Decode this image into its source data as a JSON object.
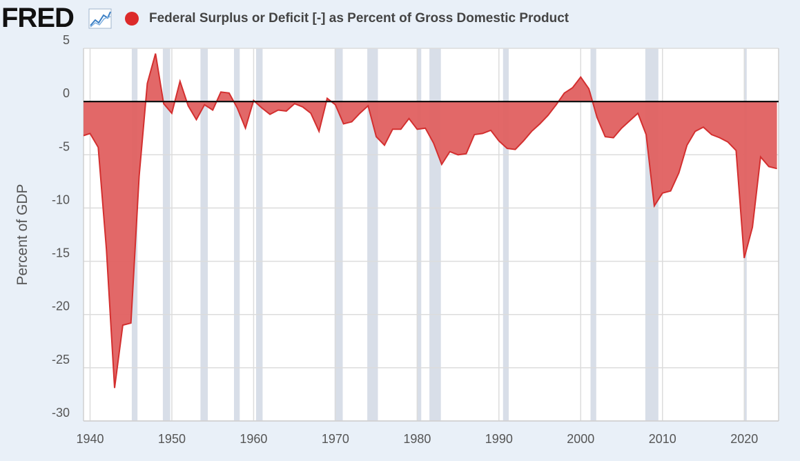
{
  "header": {
    "logo_text": "FRED",
    "logo_icon": "line-chart-icon",
    "legend_label": "Federal Surplus or Deficit [-] as Percent of Gross Domestic Product",
    "legend_color": "#dc2a2a"
  },
  "chart_data": {
    "type": "area",
    "ylabel": "Percent of GDP",
    "xlabel": "",
    "xlim": [
      1939.2,
      2024.2
    ],
    "ylim": [
      -30,
      5
    ],
    "x_ticks": [
      1940,
      1950,
      1960,
      1970,
      1980,
      1990,
      2000,
      2010,
      2020
    ],
    "y_ticks": [
      5,
      0,
      -5,
      -10,
      -15,
      -20,
      -25,
      -30
    ],
    "grid": true,
    "fill_color": "#e06060",
    "line_color": "#d32f2f",
    "recessions": [
      [
        1945.1,
        1945.8
      ],
      [
        1948.9,
        1949.8
      ],
      [
        1953.5,
        1954.4
      ],
      [
        1957.6,
        1958.3
      ],
      [
        1960.3,
        1961.1
      ],
      [
        1969.9,
        1970.9
      ],
      [
        1973.9,
        1975.2
      ],
      [
        1980.0,
        1980.5
      ],
      [
        1981.5,
        1982.9
      ],
      [
        1990.5,
        1991.2
      ],
      [
        2001.2,
        2001.9
      ],
      [
        2007.9,
        2009.5
      ],
      [
        2020.0,
        2020.3
      ]
    ],
    "series": [
      {
        "name": "Federal Surplus or Deficit [-] as Percent of Gross Domestic Product",
        "x": [
          1939,
          1940,
          1941,
          1942,
          1943,
          1944,
          1945,
          1946,
          1947,
          1948,
          1949,
          1950,
          1951,
          1952,
          1953,
          1954,
          1955,
          1956,
          1957,
          1958,
          1959,
          1960,
          1961,
          1962,
          1963,
          1964,
          1965,
          1966,
          1967,
          1968,
          1969,
          1970,
          1971,
          1972,
          1973,
          1974,
          1975,
          1976,
          1977,
          1978,
          1979,
          1980,
          1981,
          1982,
          1983,
          1984,
          1985,
          1986,
          1987,
          1988,
          1989,
          1990,
          1991,
          1992,
          1993,
          1994,
          1995,
          1996,
          1997,
          1998,
          1999,
          2000,
          2001,
          2002,
          2003,
          2004,
          2005,
          2006,
          2007,
          2008,
          2009,
          2010,
          2011,
          2012,
          2013,
          2014,
          2015,
          2016,
          2017,
          2018,
          2019,
          2020,
          2021,
          2022,
          2023,
          2024
        ],
        "values": [
          -3.2,
          -3.0,
          -4.3,
          -13.9,
          -26.9,
          -21.0,
          -20.8,
          -7.0,
          1.7,
          4.5,
          -0.2,
          -1.1,
          1.9,
          -0.4,
          -1.7,
          -0.3,
          -0.8,
          0.9,
          0.8,
          -0.6,
          -2.5,
          0.1,
          -0.6,
          -1.2,
          -0.8,
          -0.9,
          -0.2,
          -0.5,
          -1.1,
          -2.8,
          0.3,
          -0.3,
          -2.1,
          -1.9,
          -1.1,
          -0.4,
          -3.3,
          -4.1,
          -2.6,
          -2.6,
          -1.6,
          -2.6,
          -2.5,
          -3.9,
          -5.9,
          -4.7,
          -5.0,
          -4.9,
          -3.1,
          -3.0,
          -2.7,
          -3.7,
          -4.4,
          -4.5,
          -3.7,
          -2.8,
          -2.1,
          -1.3,
          -0.3,
          0.8,
          1.3,
          2.3,
          1.2,
          -1.5,
          -3.3,
          -3.4,
          -2.5,
          -1.8,
          -1.1,
          -3.1,
          -9.8,
          -8.6,
          -8.4,
          -6.7,
          -4.1,
          -2.8,
          -2.4,
          -3.1,
          -3.4,
          -3.8,
          -4.6,
          -14.7,
          -11.8,
          -5.2,
          -6.1,
          -6.3
        ]
      }
    ]
  }
}
